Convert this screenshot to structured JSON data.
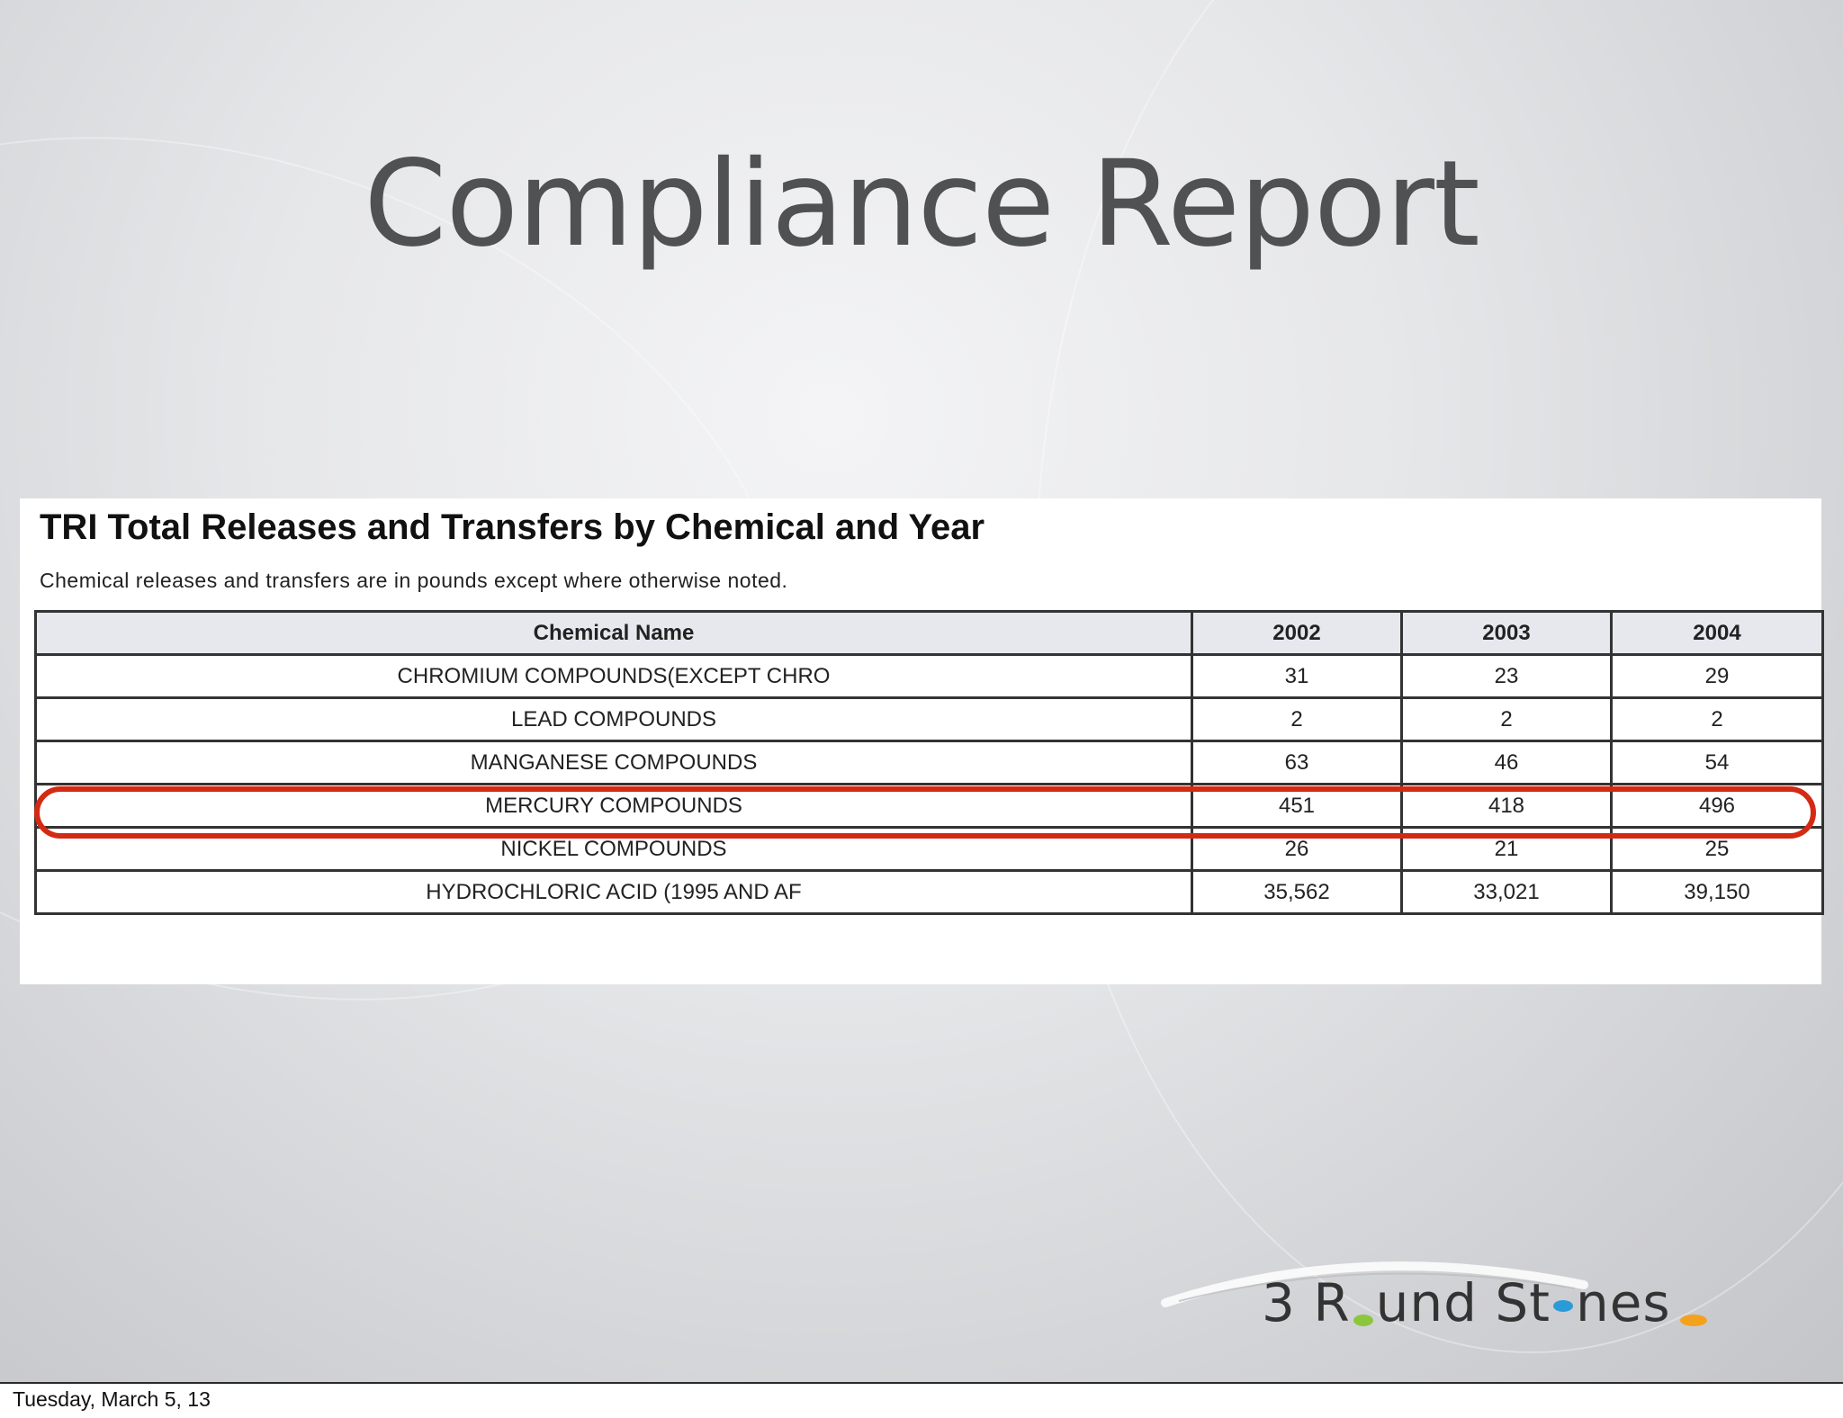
{
  "slide": {
    "title": "Compliance Report"
  },
  "report": {
    "title": "TRI Total Releases and Transfers by Chemical and Year",
    "note": "Chemical releases and transfers are in pounds except where otherwise noted.",
    "columns": [
      "Chemical Name",
      "2002",
      "2003",
      "2004"
    ],
    "rows": [
      [
        "CHROMIUM COMPOUNDS(EXCEPT CHRO",
        "31",
        "23",
        "29"
      ],
      [
        "LEAD COMPOUNDS",
        "2",
        "2",
        "2"
      ],
      [
        "MANGANESE COMPOUNDS",
        "63",
        "46",
        "54"
      ],
      [
        "MERCURY COMPOUNDS",
        "451",
        "418",
        "496"
      ],
      [
        "NICKEL COMPOUNDS",
        "26",
        "21",
        "25"
      ],
      [
        "HYDROCHLORIC ACID (1995 AND AF",
        "35,562",
        "33,021",
        "39,150"
      ]
    ],
    "highlight_color": "#d42a14"
  },
  "logo": {
    "text": "3 Round Stones",
    "colors": {
      "green": "#8cc63f",
      "blue": "#2b9bd8",
      "orange": "#f4a11d"
    }
  },
  "footer": {
    "date": "Tuesday, March 5, 13"
  }
}
